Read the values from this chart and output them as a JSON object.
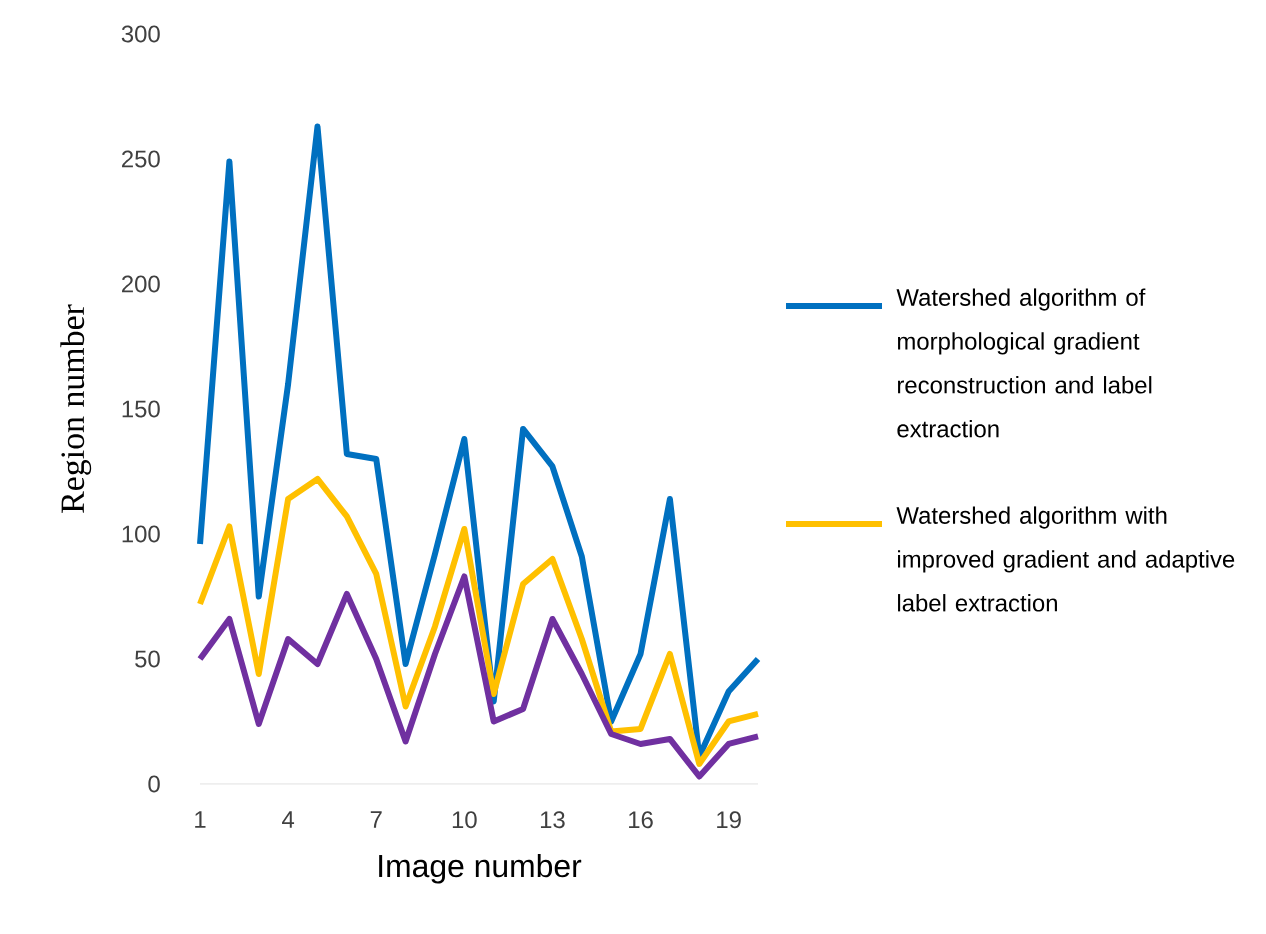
{
  "chart_data": {
    "type": "line",
    "xlabel": "Image number",
    "ylabel": "Region number",
    "x": [
      1,
      2,
      3,
      4,
      5,
      6,
      7,
      8,
      9,
      10,
      11,
      12,
      13,
      14,
      15,
      16,
      17,
      18,
      19,
      20
    ],
    "xlim": [
      1,
      20
    ],
    "xticks": [
      1,
      4,
      7,
      10,
      13,
      16,
      19
    ],
    "ylim": [
      0,
      300
    ],
    "yticks": [
      0,
      50,
      100,
      150,
      200,
      250,
      300
    ],
    "legend": "right",
    "marker": "none",
    "line_style": "solid",
    "series": [
      {
        "name": "Watershed algorithm of morphological gradient reconstruction and label extraction",
        "color": "#0070c0",
        "values": [
          96,
          249,
          75,
          160,
          263,
          132,
          130,
          48,
          92,
          138,
          33,
          142,
          127,
          91,
          25,
          52,
          114,
          11,
          37,
          50
        ]
      },
      {
        "name": "Watershed algorithm with improved gradient and adaptive label extraction",
        "color": "#ffc000",
        "values": [
          72,
          103,
          44,
          114,
          122,
          107,
          84,
          31,
          63,
          102,
          36,
          80,
          90,
          58,
          21,
          22,
          52,
          8,
          25,
          28
        ]
      },
      {
        "color": "#7030a0",
        "values": [
          50,
          66,
          24,
          58,
          48,
          76,
          50,
          17,
          52,
          83,
          25,
          30,
          66,
          44,
          20,
          16,
          18,
          3,
          16,
          19
        ]
      }
    ]
  }
}
